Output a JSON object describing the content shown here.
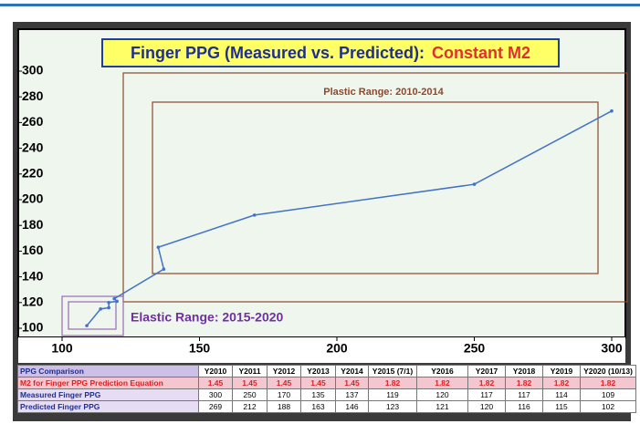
{
  "chart_data": {
    "type": "line",
    "title": "Finger PPG  (Measured vs.  Predicted):",
    "title_highlight": "Constant M2",
    "x": [
      300,
      250,
      170,
      135,
      137,
      119,
      120,
      117,
      117,
      114,
      109
    ],
    "values": [
      269,
      212,
      188,
      163,
      146,
      123,
      121,
      120,
      116,
      115,
      102
    ],
    "color": "#4472c4",
    "xlim": [
      100,
      300
    ],
    "xticks": [
      100,
      150,
      200,
      250,
      300
    ],
    "ylim": [
      100,
      300
    ],
    "yticks": [
      100,
      120,
      140,
      160,
      180,
      200,
      220,
      240,
      260,
      280,
      300
    ],
    "annotations": [
      "Plastic Range: 2010-2014",
      "Elastic Range:  2015-2020"
    ]
  },
  "table": {
    "header": [
      "PPG Comparison",
      "Y2010",
      "Y2011",
      "Y2012",
      "Y2013",
      "Y2014",
      "Y2015 (7/1)",
      "Y2016",
      "Y2017",
      "Y2018",
      "Y2019",
      "Y2020 (10/13)"
    ],
    "rows": [
      [
        "M2 for Finger PPG Prediction Equation",
        "1.45",
        "1.45",
        "1.45",
        "1.45",
        "1.45",
        "1.82",
        "1.82",
        "1.82",
        "1.82",
        "1.82",
        "1.82"
      ],
      [
        "Measured Finger PPG",
        "300",
        "250",
        "170",
        "135",
        "137",
        "119",
        "120",
        "117",
        "117",
        "114",
        "109"
      ],
      [
        "Predicted Finger PPG",
        "269",
        "212",
        "188",
        "163",
        "146",
        "123",
        "121",
        "120",
        "116",
        "115",
        "102"
      ]
    ]
  }
}
